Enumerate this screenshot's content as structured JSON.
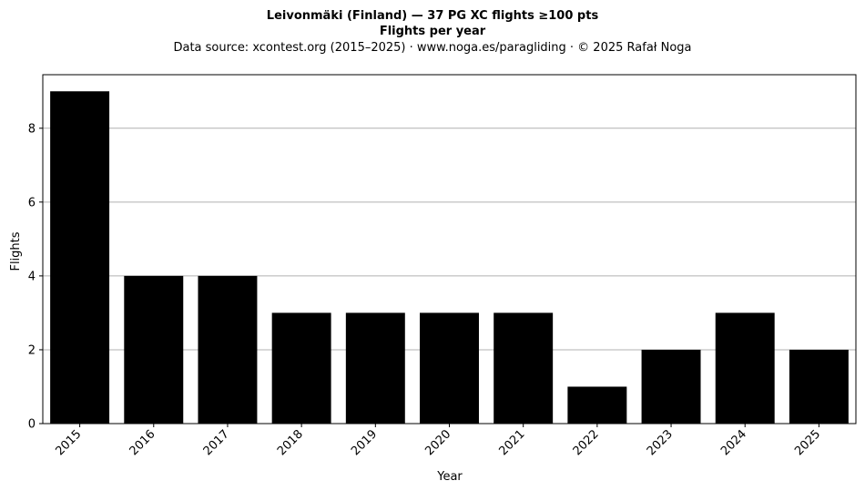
{
  "chart_data": {
    "type": "bar",
    "title": "Leivonmäki (Finland)  —  37 PG XC flights ≥100 pts",
    "subtitle": "Flights per year",
    "source_note": "Data source: xcontest.org (2015–2025)  ·  www.noga.es/paragliding  ·  © 2025 Rafał Noga",
    "xlabel": "Year",
    "ylabel": "Flights",
    "categories": [
      "2015",
      "2016",
      "2017",
      "2018",
      "2019",
      "2020",
      "2021",
      "2022",
      "2023",
      "2024",
      "2025"
    ],
    "values": [
      9,
      4,
      4,
      3,
      3,
      3,
      3,
      1,
      2,
      3,
      2
    ],
    "ylim": [
      0,
      9.45
    ],
    "yticks": [
      0,
      2,
      4,
      6,
      8
    ],
    "grid": "horizontal",
    "bar_color": "#000000",
    "grid_color": "#b0b0b0"
  }
}
